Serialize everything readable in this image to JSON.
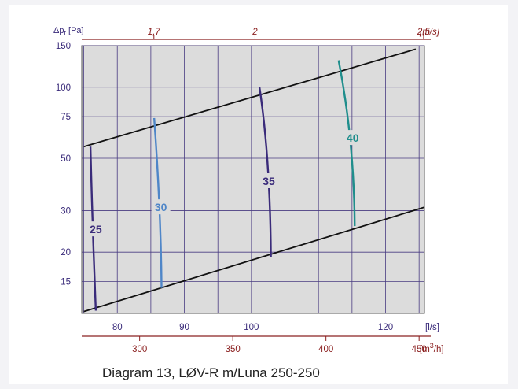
{
  "caption": "Diagram 13, LØV-R m/Luna 250-250",
  "chart_data": {
    "type": "line",
    "ylabel_main": "Δp",
    "ylabel_sub": "t",
    "ylabel_unit": " [Pa]",
    "yscale": "log",
    "ylim": [
      11,
      150
    ],
    "yticks": [
      15,
      20,
      30,
      50,
      75,
      100,
      150
    ],
    "xlim": [
      74.7,
      125.8
    ],
    "grid": true,
    "x_axes": [
      {
        "position": "bottom",
        "unit": "[l/s]",
        "ticks": [
          80,
          90,
          100,
          120
        ],
        "tick_labels": [
          "80",
          "90",
          "100",
          "120"
        ]
      },
      {
        "position": "lower-bottom",
        "unit_main": "[m",
        "unit_sup": "3",
        "unit_end": "/h]",
        "ticks": [
          300,
          350,
          400,
          450
        ],
        "tick_labels": [
          "300",
          "350",
          "400",
          "450"
        ]
      },
      {
        "position": "top",
        "unit": "[m/s]",
        "ticks": [
          1.7,
          2,
          2.5
        ],
        "tick_labels": [
          "1,7",
          "2",
          "2,5"
        ]
      }
    ],
    "boundary_lines": [
      {
        "name": "upper",
        "x": [
          75,
          124.5
        ],
        "y": [
          56,
          145
        ]
      },
      {
        "name": "lower",
        "x": [
          75,
          125.8
        ],
        "y": [
          11.2,
          31
        ]
      }
    ],
    "series": [
      {
        "name": "25",
        "color": "#3a2b7a",
        "x": [
          76.0,
          76.3,
          76.8
        ],
        "y": [
          56,
          25,
          11.3
        ],
        "label_at": [
          76.8,
          25
        ]
      },
      {
        "name": "30",
        "color": "#4f86c8",
        "x": [
          85.5,
          86.5,
          86.6
        ],
        "y": [
          74,
          30,
          14.1
        ],
        "label_at": [
          86.5,
          31
        ]
      },
      {
        "name": "35",
        "color": "#3a2b7a",
        "x": [
          101.2,
          102.8,
          102.9
        ],
        "y": [
          100,
          50,
          19.1
        ],
        "label_at": [
          102.6,
          40
        ]
      },
      {
        "name": "40",
        "color": "#1f8e8c",
        "x": [
          113.0,
          115.3,
          115.4
        ],
        "y": [
          130,
          60,
          25.8
        ],
        "label_at": [
          115.1,
          61
        ]
      }
    ]
  }
}
